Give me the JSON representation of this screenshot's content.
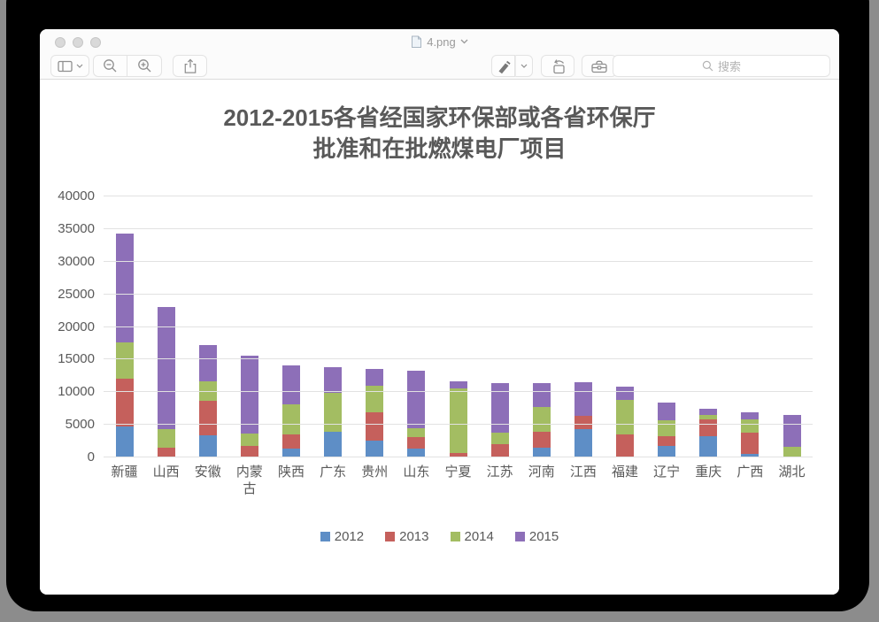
{
  "window": {
    "title": "4.png",
    "search_placeholder": "搜索"
  },
  "chart_data": {
    "type": "bar",
    "stacked": true,
    "title_lines": [
      "2012-2015各省经国家环保部或各省环保厅",
      "批准和在批燃煤电厂项目"
    ],
    "categories": [
      "新疆",
      "山西",
      "安徽",
      "内蒙古",
      "陕西",
      "广东",
      "贵州",
      "山东",
      "宁夏",
      "江苏",
      "河南",
      "江西",
      "福建",
      "辽宁",
      "重庆",
      "广西",
      "湖北"
    ],
    "series": [
      {
        "name": "2012",
        "color": "#5e8ec6",
        "values": [
          4800,
          0,
          3400,
          0,
          1300,
          3900,
          2600,
          1300,
          0,
          0,
          1500,
          4400,
          0,
          1800,
          3200,
          500,
          0
        ]
      },
      {
        "name": "2013",
        "color": "#c5605c",
        "values": [
          7300,
          1500,
          5300,
          1800,
          2200,
          0,
          4300,
          1800,
          700,
          2100,
          2500,
          2000,
          3500,
          1500,
          2700,
          3300,
          0
        ]
      },
      {
        "name": "2014",
        "color": "#a3bd62",
        "values": [
          5500,
          2800,
          2900,
          1900,
          4700,
          6000,
          4100,
          1400,
          9900,
          1700,
          3700,
          0,
          5300,
          2400,
          600,
          2000,
          1600
        ]
      },
      {
        "name": "2015",
        "color": "#8d6fb8",
        "values": [
          16700,
          18800,
          5600,
          11900,
          5900,
          3900,
          2500,
          8800,
          1000,
          7600,
          3700,
          5100,
          2000,
          2700,
          1000,
          1100,
          4900
        ]
      }
    ],
    "ylim": [
      0,
      40000
    ],
    "ytick": 5000,
    "grid": true,
    "legend_position": "bottom"
  }
}
